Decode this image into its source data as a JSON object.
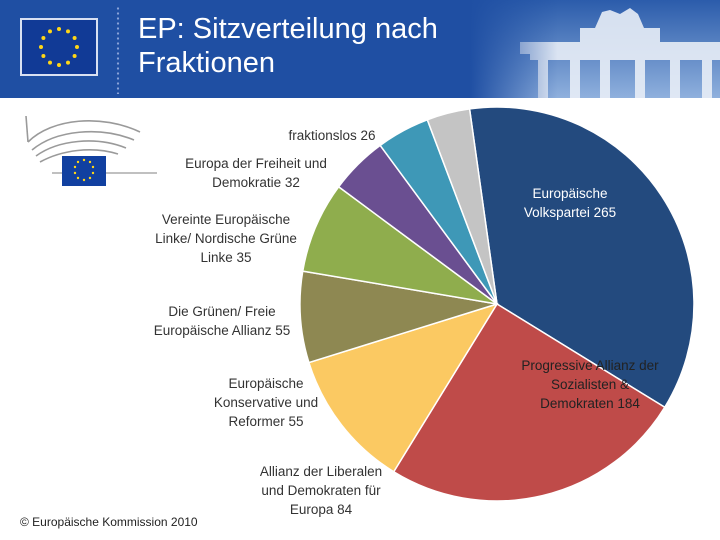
{
  "header": {
    "title": "EP: Sitzverteilung nach\nFraktionen"
  },
  "footer": {
    "copyright": "© Europäische Kommission 2010"
  },
  "icons": {
    "flag": "eu-flag-icon",
    "logo": "european-parliament-logo-icon",
    "photo": "brandenburg-gate-photo"
  },
  "chart_data": {
    "type": "pie",
    "unit": "Sitze",
    "slices": [
      {
        "label_lines": [
          "Europäische",
          "Volkspartei  265"
        ],
        "value": 265,
        "color": "#234a7e",
        "text_color": "#ffffff"
      },
      {
        "label_lines": [
          "Progressive Allianz der",
          "Sozialisten &",
          "Demokraten 184"
        ],
        "value": 184,
        "color": "#bf4b49",
        "text_color": "#222222"
      },
      {
        "label_lines": [
          "Allianz der Liberalen",
          "und Demokraten für",
          "Europa 84"
        ],
        "value": 84,
        "color": "#fbc962",
        "text_color": "#333333"
      },
      {
        "label_lines": [
          "Europäische",
          "Konservative und",
          "Reformer 55"
        ],
        "value": 55,
        "color": "#8e8852",
        "text_color": "#333333"
      },
      {
        "label_lines": [
          "Die Grünen/ Freie",
          "Europäische Allianz 55"
        ],
        "value": 55,
        "color": "#8fad4d",
        "text_color": "#333333"
      },
      {
        "label_lines": [
          "Vereinte Europäische",
          "Linke/ Nordische Grüne",
          "Linke 35"
        ],
        "value": 35,
        "color": "#6a4f91",
        "text_color": "#333333"
      },
      {
        "label_lines": [
          "Europa der Freiheit und",
          "Demokratie 32"
        ],
        "value": 32,
        "color": "#3e98b7",
        "text_color": "#333333"
      },
      {
        "label_lines": [
          "fraktionslos 26"
        ],
        "value": 26,
        "color": "#c4c4c4",
        "text_color": "#333333"
      }
    ]
  }
}
